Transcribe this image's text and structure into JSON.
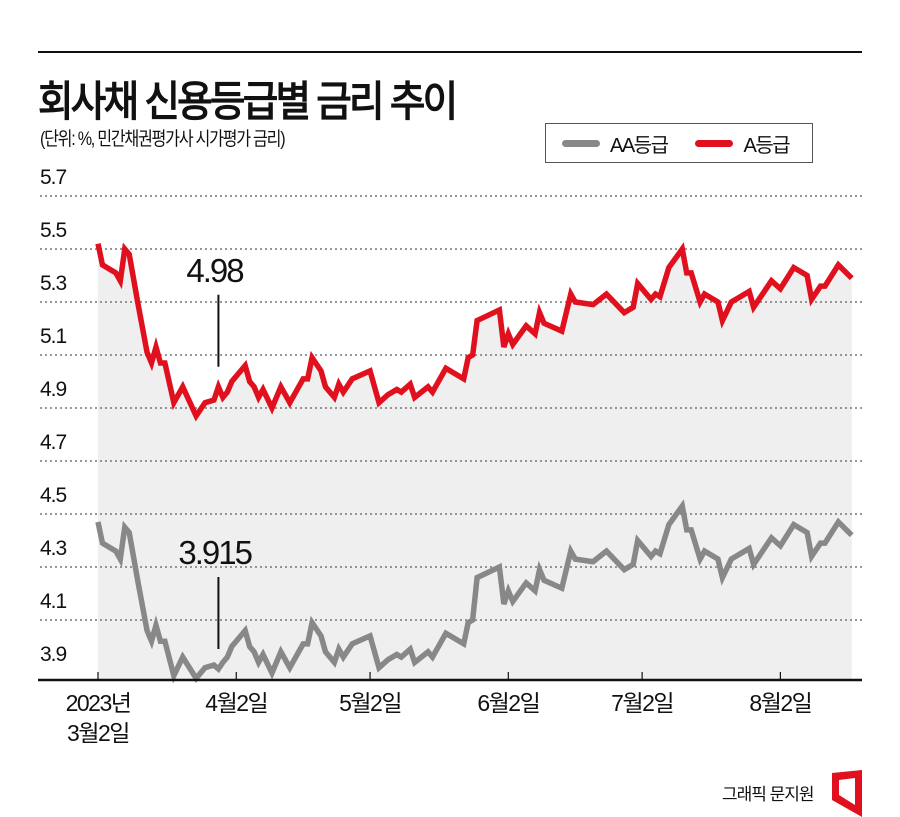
{
  "header": {
    "title": "회사채 신용등급별 금리 추이",
    "subtitle": "(단위: %, 민간채권평가사 시가평가 금리)"
  },
  "credit": "그래픽 문지원",
  "logo": {
    "color": "#e0101e"
  },
  "chart_data": {
    "type": "line",
    "title": "회사채 신용등급별 금리 추이",
    "ylabel": "%",
    "xlabel": "",
    "x_unit": "days since 2023-03-02",
    "ylim": [
      3.87,
      5.7
    ],
    "yticks": [
      "5.7",
      "5.5",
      "5.3",
      "5.1",
      "4.9",
      "4.7",
      "4.5",
      "4.3",
      "4.1",
      "3.9"
    ],
    "ytick_values": [
      5.7,
      5.5,
      5.3,
      5.1,
      4.9,
      4.7,
      4.5,
      4.3,
      4.1,
      3.9
    ],
    "grid": true,
    "legend_position": "top-right",
    "xticks": [
      {
        "day": 0,
        "label": [
          "2023년",
          "3월2일"
        ]
      },
      {
        "day": 31,
        "label": [
          "4월2일"
        ]
      },
      {
        "day": 61,
        "label": [
          "5월2일"
        ]
      },
      {
        "day": 92,
        "label": [
          "6월2일"
        ]
      },
      {
        "day": 122,
        "label": [
          "7월2일"
        ]
      },
      {
        "day": 153,
        "label": [
          "8월2일"
        ]
      }
    ],
    "x": [
      0,
      1,
      3,
      4,
      5,
      6,
      7,
      9,
      11,
      12,
      13,
      14,
      15,
      17,
      19,
      22,
      24,
      26,
      27,
      28,
      29,
      30,
      32,
      33,
      34,
      35,
      36,
      37,
      39,
      41,
      43,
      46,
      47,
      48,
      50,
      51,
      53,
      54,
      55,
      57,
      61,
      63,
      65,
      67,
      68,
      70,
      71,
      74,
      75,
      78,
      82,
      83,
      84,
      85,
      90,
      91,
      92,
      93,
      96,
      98,
      99,
      100,
      104,
      106,
      107,
      111,
      114,
      118,
      120,
      121,
      124,
      125,
      126,
      128,
      131,
      132,
      133,
      135,
      136,
      139,
      140,
      142,
      144,
      146,
      147,
      149,
      151,
      153,
      156,
      159,
      160,
      162,
      163,
      166,
      169
    ],
    "series": [
      {
        "name": "AA등급",
        "color": "#888888",
        "values": [
          4.47,
          4.39,
          4.37,
          4.36,
          4.33,
          4.45,
          4.43,
          4.24,
          4.06,
          4.02,
          4.08,
          4.02,
          4.02,
          3.89,
          3.96,
          3.88,
          3.92,
          3.93,
          3.915,
          3.94,
          3.96,
          4.0,
          4.04,
          4.06,
          4.0,
          3.98,
          3.94,
          3.97,
          3.9,
          3.98,
          3.92,
          4.01,
          4.01,
          4.09,
          4.04,
          3.98,
          3.94,
          3.99,
          3.96,
          4.01,
          4.04,
          3.92,
          3.95,
          3.97,
          3.96,
          3.99,
          3.94,
          3.98,
          3.96,
          4.05,
          4.01,
          4.09,
          4.1,
          4.26,
          4.3,
          4.16,
          4.21,
          4.17,
          4.24,
          4.21,
          4.29,
          4.25,
          4.22,
          4.36,
          4.33,
          4.32,
          4.36,
          4.29,
          4.31,
          4.4,
          4.34,
          4.36,
          4.35,
          4.46,
          4.53,
          4.44,
          4.44,
          4.33,
          4.36,
          4.33,
          4.26,
          4.33,
          4.35,
          4.37,
          4.31,
          4.36,
          4.41,
          4.38,
          4.46,
          4.43,
          4.34,
          4.39,
          4.39,
          4.47,
          4.42
        ]
      },
      {
        "name": "A등급",
        "color": "#e0101e",
        "values": [
          5.52,
          5.44,
          5.42,
          5.41,
          5.38,
          5.5,
          5.48,
          5.29,
          5.11,
          5.07,
          5.13,
          5.07,
          5.07,
          4.92,
          4.98,
          4.87,
          4.92,
          4.93,
          4.98,
          4.94,
          4.96,
          5.0,
          5.04,
          5.06,
          5.0,
          4.98,
          4.94,
          4.97,
          4.9,
          4.98,
          4.92,
          5.01,
          5.01,
          5.09,
          5.04,
          4.98,
          4.94,
          4.99,
          4.96,
          5.01,
          5.04,
          4.92,
          4.95,
          4.97,
          4.96,
          4.99,
          4.94,
          4.98,
          4.96,
          5.05,
          5.01,
          5.09,
          5.1,
          5.23,
          5.27,
          5.13,
          5.18,
          5.14,
          5.21,
          5.18,
          5.26,
          5.22,
          5.19,
          5.33,
          5.3,
          5.29,
          5.33,
          5.26,
          5.28,
          5.37,
          5.31,
          5.33,
          5.32,
          5.43,
          5.5,
          5.41,
          5.41,
          5.3,
          5.33,
          5.3,
          5.23,
          5.3,
          5.32,
          5.34,
          5.28,
          5.33,
          5.38,
          5.35,
          5.43,
          5.4,
          5.31,
          5.36,
          5.36,
          5.44,
          5.39
        ]
      }
    ],
    "annotations": [
      {
        "series": "A등급",
        "day": 27,
        "value": 4.98,
        "label": "4.98"
      },
      {
        "series": "AA등급",
        "day": 27,
        "value": 3.915,
        "label": "3.915"
      }
    ]
  }
}
